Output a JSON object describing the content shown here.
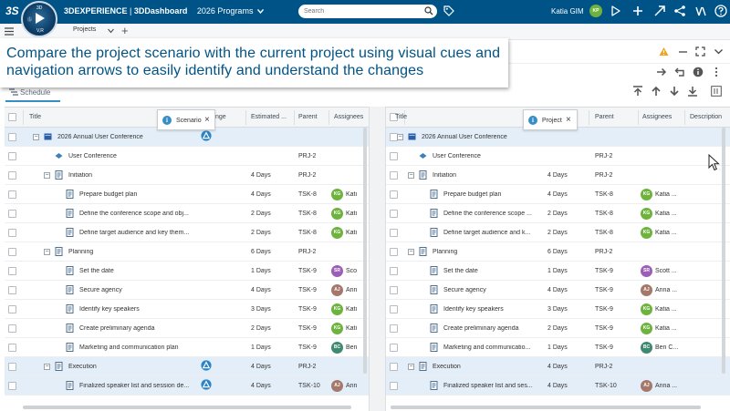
{
  "topbar": {
    "logo": "3S",
    "compass_top": "3D",
    "compass_left": "Ⓢ",
    "compass_bottom": "V,R",
    "app_brand": "3DEXPERIENCE",
    "app_sep": " | ",
    "app_name": "3DDashboard",
    "dashboard": "2026 Programs",
    "search_placeholder": "Search",
    "user_name": "Katia GIM",
    "user_initials": "KP"
  },
  "subbar": {
    "tab_label": "Projects",
    "add_label": "+"
  },
  "banner": {
    "text": "Compare the project scenario with the current project using visual cues and navigation arrows to easily identify and understand the changes"
  },
  "toolbar": {
    "schedule_tab": "Schedule"
  },
  "left_pane": {
    "columns": [
      "Title",
      "nge",
      "Estimated ...",
      "Parent",
      "Assignees"
    ],
    "popup_label": "Scenario",
    "rows": [
      {
        "title": "2026 Annual User Conference",
        "duration": "",
        "parent": "",
        "assignee": "",
        "initials": "",
        "hl": true,
        "change": true
      },
      {
        "title": "User Conference",
        "duration": "",
        "parent": "PRJ-2",
        "assignee": "",
        "initials": ""
      },
      {
        "title": "Initiation",
        "duration": "4 Days",
        "parent": "PRJ-2",
        "assignee": "",
        "initials": ""
      },
      {
        "title": "Prepare budget plan",
        "duration": "4 Days",
        "parent": "TSK-8",
        "assignee": "Kati",
        "initials": "KG"
      },
      {
        "title": "Define the conference scope and obj...",
        "duration": "2 Days",
        "parent": "TSK-8",
        "assignee": "Kati",
        "initials": "KG"
      },
      {
        "title": "Define target audience and key them...",
        "duration": "2 Days",
        "parent": "TSK-8",
        "assignee": "Kati",
        "initials": "KG"
      },
      {
        "title": "Planning",
        "duration": "6 Days",
        "parent": "PRJ-2",
        "assignee": "",
        "initials": ""
      },
      {
        "title": "Set the date",
        "duration": "1 Days",
        "parent": "TSK-9",
        "assignee": "Sco",
        "initials": "SR"
      },
      {
        "title": "Secure agency",
        "duration": "4 Days",
        "parent": "TSK-9",
        "assignee": "Ann",
        "initials": "AJ"
      },
      {
        "title": "Identify key speakers",
        "duration": "3 Days",
        "parent": "TSK-9",
        "assignee": "Kati",
        "initials": "KG"
      },
      {
        "title": "Create preliminary agenda",
        "duration": "2 Days",
        "parent": "TSK-9",
        "assignee": "Kati",
        "initials": "KG"
      },
      {
        "title": "Marketing and communication plan",
        "duration": "1 Days",
        "parent": "TSK-9",
        "assignee": "Ben",
        "initials": "BC"
      },
      {
        "title": "Execution",
        "duration": "4 Days",
        "parent": "PRJ-2",
        "assignee": "",
        "initials": "",
        "hl": true,
        "change": true
      },
      {
        "title": "Finalized speaker list and session de...",
        "duration": "4 Days",
        "parent": "TSK-10",
        "assignee": "Ann",
        "initials": "AJ",
        "hl": true,
        "change": true
      }
    ]
  },
  "right_pane": {
    "columns": [
      "Title",
      "",
      "Parent",
      "Assignees",
      "Description"
    ],
    "popup_label": "Project",
    "rows": [
      {
        "title": "2026 Annual User Conference",
        "duration": "",
        "parent": "",
        "assignee": "",
        "initials": "",
        "hl": true
      },
      {
        "title": "User Conference",
        "duration": "",
        "parent": "PRJ-2",
        "assignee": "",
        "initials": ""
      },
      {
        "title": "Initiation",
        "duration": "4 Days",
        "parent": "PRJ-2",
        "assignee": "",
        "initials": ""
      },
      {
        "title": "Prepare budget plan",
        "duration": "4 Days",
        "parent": "TSK-8",
        "assignee": "Katia ...",
        "initials": "KG"
      },
      {
        "title": "Define the conference scope ...",
        "duration": "2 Days",
        "parent": "TSK-8",
        "assignee": "Katia ...",
        "initials": "KG"
      },
      {
        "title": "Define target audience and k...",
        "duration": "2 Days",
        "parent": "TSK-8",
        "assignee": "Katia ...",
        "initials": "KG"
      },
      {
        "title": "Planning",
        "duration": "6 Days",
        "parent": "PRJ-2",
        "assignee": "",
        "initials": ""
      },
      {
        "title": "Set the date",
        "duration": "1 Days",
        "parent": "TSK-9",
        "assignee": "Scott ...",
        "initials": "SR"
      },
      {
        "title": "Secure agency",
        "duration": "4 Days",
        "parent": "TSK-9",
        "assignee": "Anna ...",
        "initials": "AJ"
      },
      {
        "title": "Identify key speakers",
        "duration": "3 Days",
        "parent": "TSK-9",
        "assignee": "Katia ...",
        "initials": "KG"
      },
      {
        "title": "Create preliminary agenda",
        "duration": "2 Days",
        "parent": "TSK-9",
        "assignee": "Katia ...",
        "initials": "KG"
      },
      {
        "title": "Marketing and communicatio...",
        "duration": "1 Days",
        "parent": "TSK-9",
        "assignee": "Ben C...",
        "initials": "BC"
      },
      {
        "title": "Execution",
        "duration": "4 Days",
        "parent": "PRJ-2",
        "assignee": "",
        "initials": "",
        "hl": true
      },
      {
        "title": "Finalized speaker list and ses...",
        "duration": "4 Days",
        "parent": "TSK-10",
        "assignee": "Anna ...",
        "initials": "AJ",
        "hl": true
      }
    ]
  },
  "colors": {
    "brand": "#005386",
    "accent": "#368ec4",
    "highlight_row": "#e4eef8",
    "KG": "#6fb33f",
    "SR": "#9b5fb5",
    "AJ": "#a4786a",
    "BC": "#3d8a6e"
  }
}
